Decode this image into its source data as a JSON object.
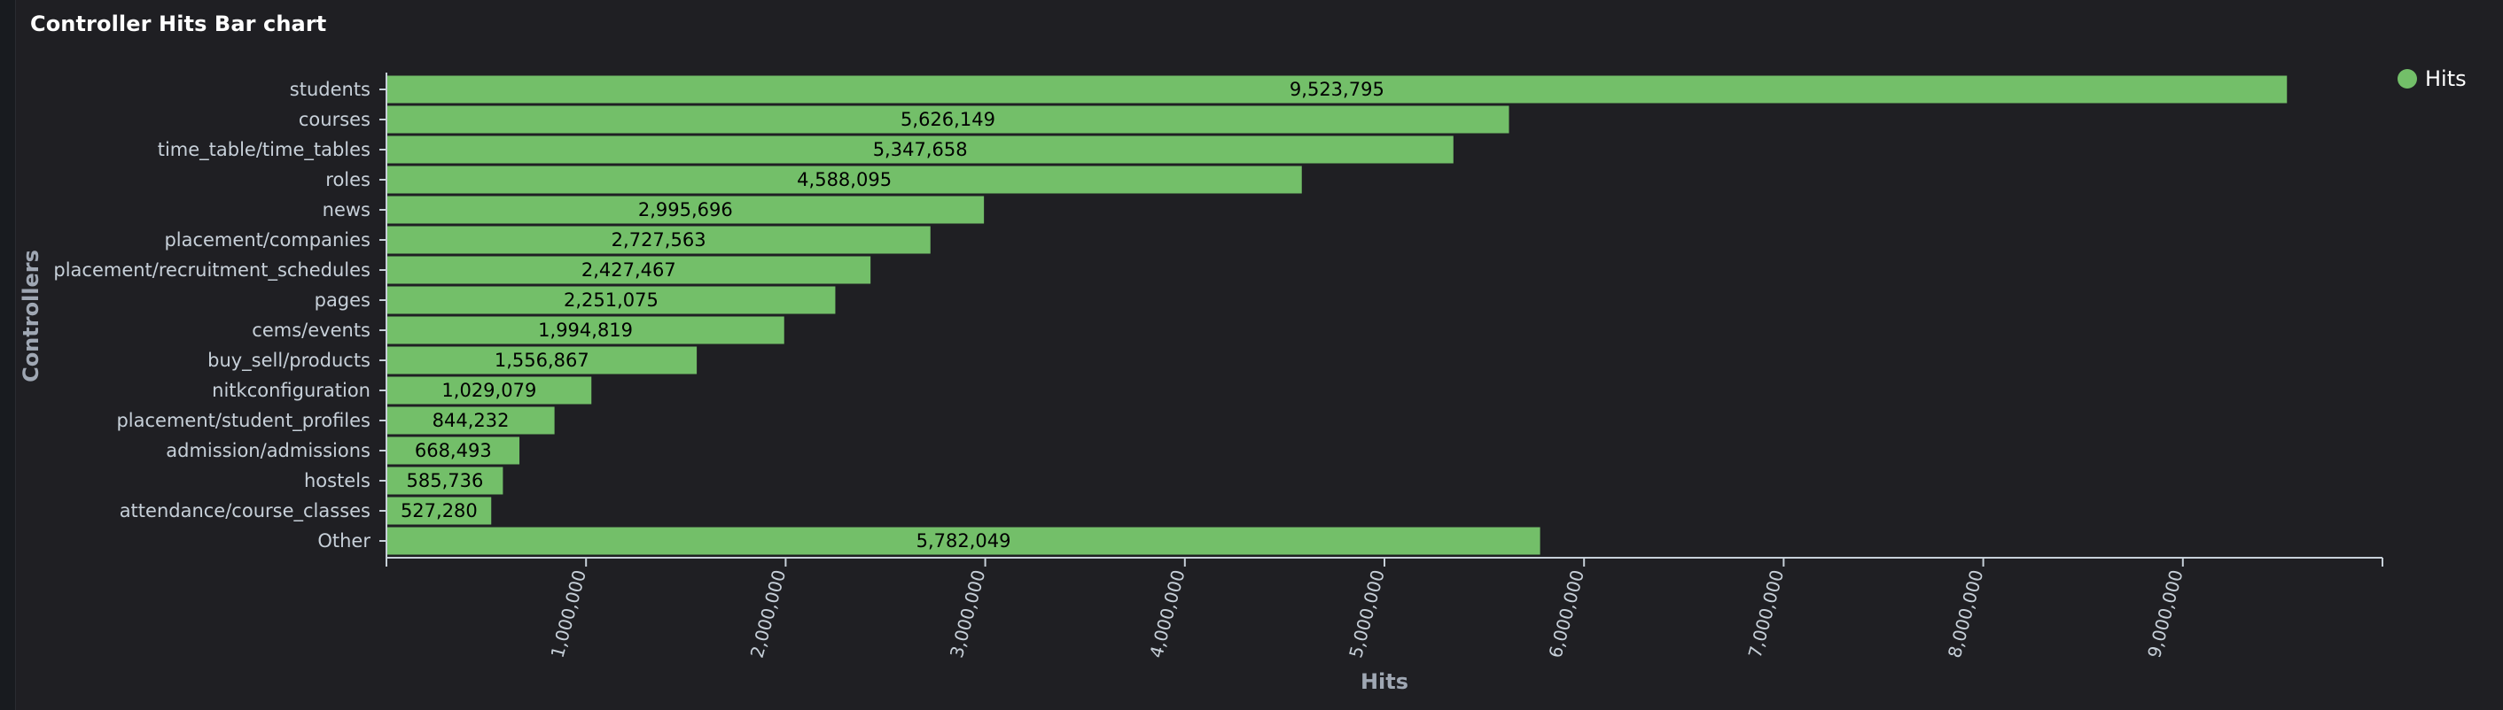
{
  "panel": {
    "title": "Controller Hits Bar chart"
  },
  "chart_data": {
    "type": "bar",
    "orientation": "horizontal",
    "title": "Controller Hits Bar chart",
    "xlabel": "Hits",
    "ylabel": "Controllers",
    "categories": [
      "students",
      "courses",
      "time_table/time_tables",
      "roles",
      "news",
      "placement/companies",
      "placement/recruitment_schedules",
      "pages",
      "cems/events",
      "buy_sell/products",
      "nitkconfiguration",
      "placement/student_profiles",
      "admission/admissions",
      "hostels",
      "attendance/course_classes",
      "Other"
    ],
    "series": [
      {
        "name": "Hits",
        "values": [
          9523795,
          5626149,
          5347658,
          4588095,
          2995696,
          2727563,
          2427467,
          2251075,
          1994819,
          1556867,
          1029079,
          844232,
          668493,
          585736,
          527280,
          5782049
        ]
      }
    ],
    "value_labels": [
      "9,523,795",
      "5,626,149",
      "5,347,658",
      "4,588,095",
      "2,995,696",
      "2,727,563",
      "2,427,467",
      "2,251,075",
      "1,994,819",
      "1,556,867",
      "1,029,079",
      "844,232",
      "668,493",
      "585,736",
      "527,280",
      "5,782,049"
    ],
    "xlim": [
      0,
      10000000
    ],
    "xticks": [
      1000000,
      2000000,
      3000000,
      4000000,
      5000000,
      6000000,
      7000000,
      8000000,
      9000000
    ],
    "xtick_labels": [
      "1,000,000",
      "2,000,000",
      "3,000,000",
      "4,000,000",
      "5,000,000",
      "6,000,000",
      "7,000,000",
      "8,000,000",
      "9,000,000"
    ],
    "grid": false,
    "legend": {
      "position": "top-right",
      "entries": [
        "Hits"
      ]
    },
    "colors": {
      "bar_fill": "#73bf69",
      "bar_stroke": "#1f1f23",
      "axis": "#c7d0d9",
      "legend_dot": "#73bf69",
      "background": "#1f1f23"
    }
  }
}
